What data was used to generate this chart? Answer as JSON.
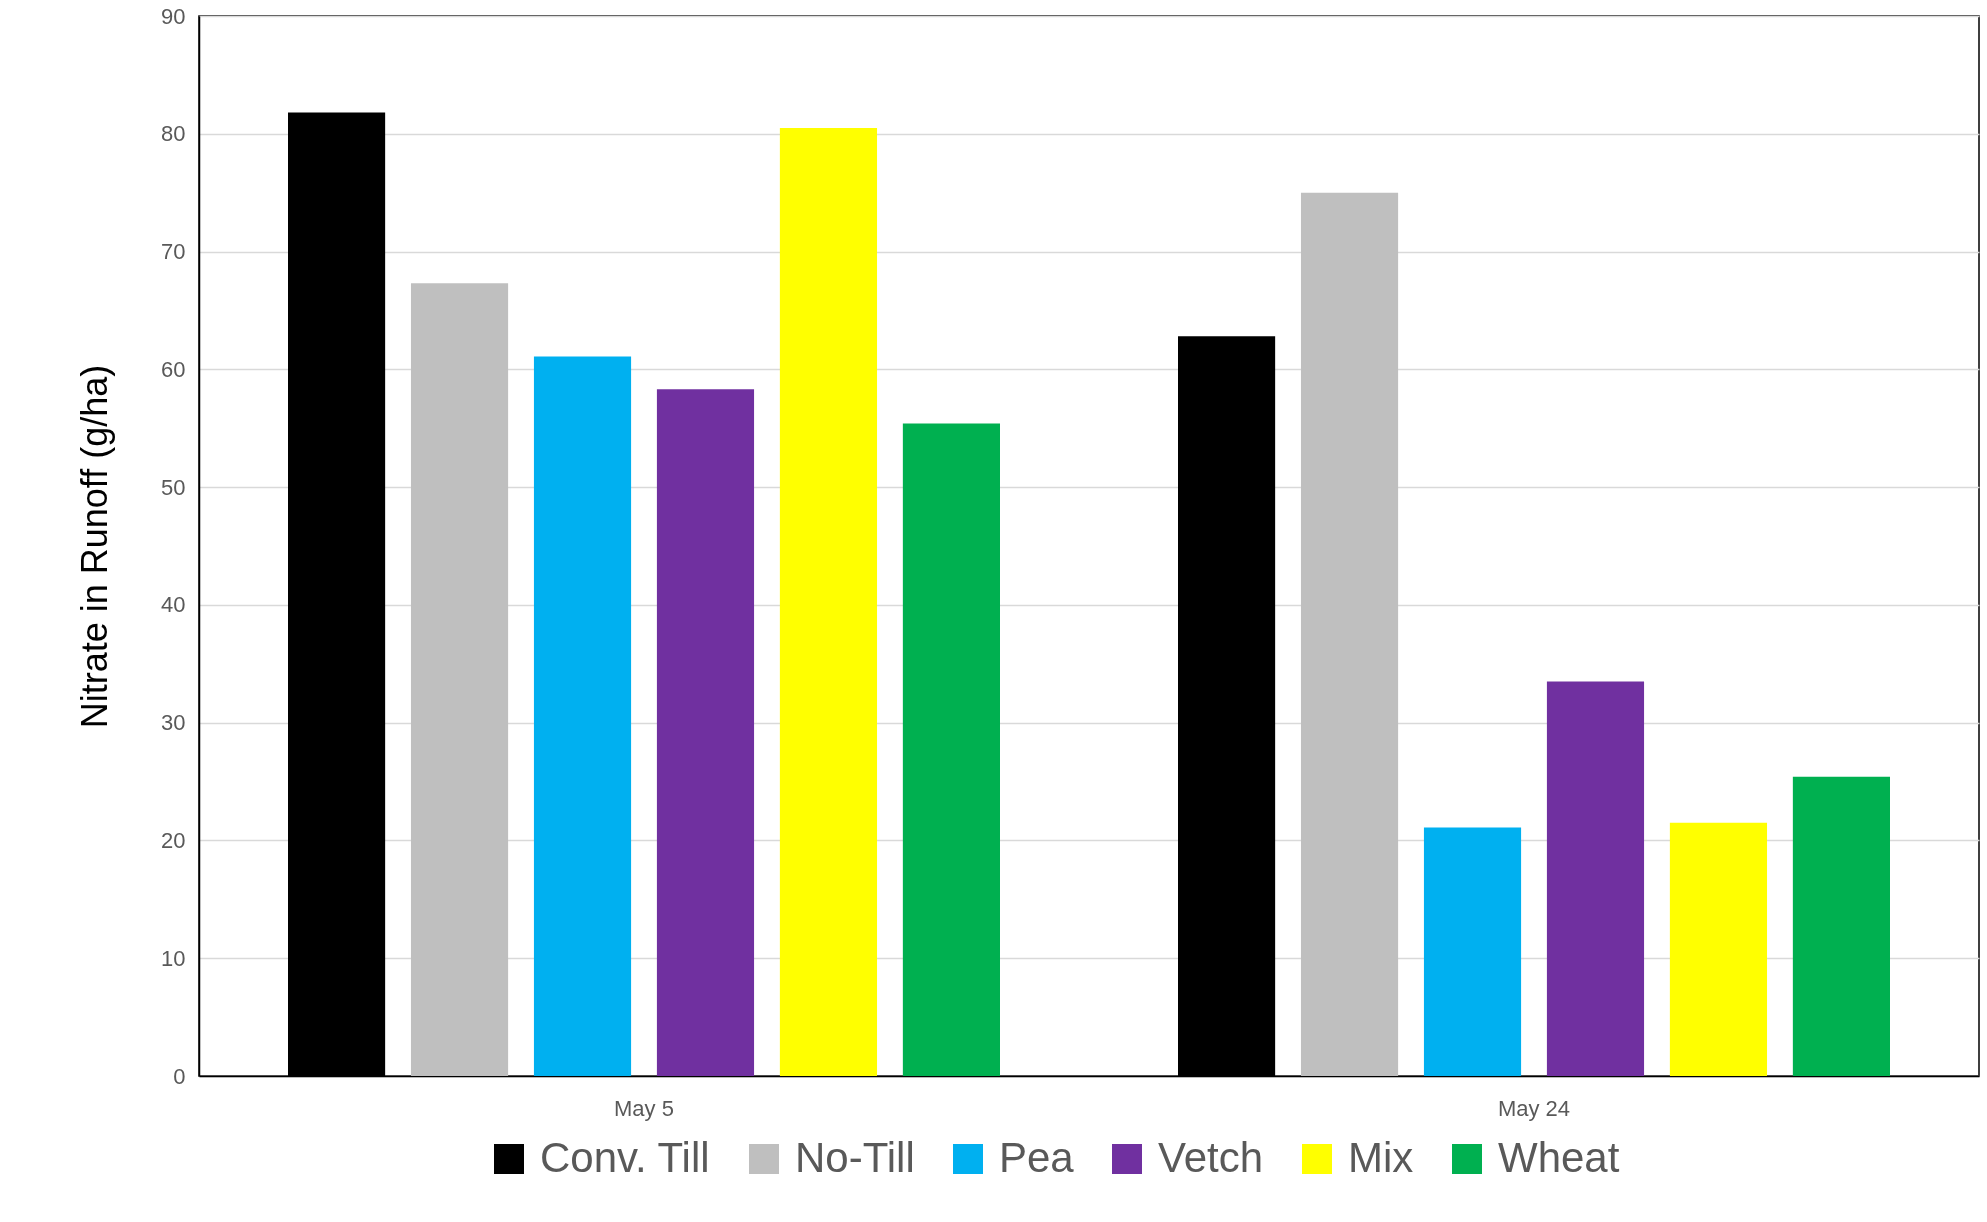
{
  "chart_data": {
    "type": "bar",
    "ylabel": "Nitrate in Runoff (g/ha)",
    "categories": [
      "May 5",
      "May 24"
    ],
    "series": [
      {
        "name": "Conv. Till",
        "color": "#000000",
        "values": [
          81.8,
          62.8
        ]
      },
      {
        "name": "No-Till",
        "color": "#bfbfbf",
        "values": [
          67.3,
          75.0
        ]
      },
      {
        "name": "Pea",
        "color": "#00b0f0",
        "values": [
          61.1,
          21.1
        ]
      },
      {
        "name": "Vetch",
        "color": "#7030a0",
        "values": [
          58.3,
          33.5
        ]
      },
      {
        "name": "Mix",
        "color": "#ffff00",
        "values": [
          80.5,
          21.5
        ]
      },
      {
        "name": "Wheat",
        "color": "#00b050",
        "values": [
          55.4,
          25.4
        ]
      }
    ],
    "ylim": [
      0,
      90
    ],
    "yticks": [
      0,
      10,
      20,
      30,
      40,
      50,
      60,
      70,
      80,
      90
    ],
    "grid": "y",
    "legend": "bottom"
  }
}
